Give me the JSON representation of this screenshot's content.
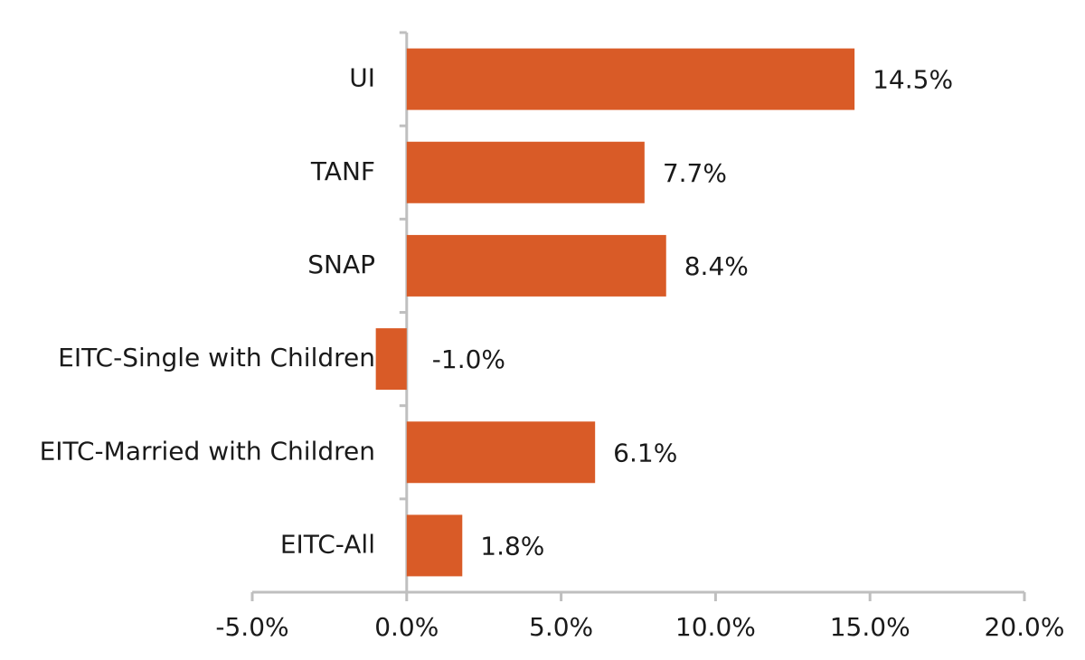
{
  "chart_data": {
    "type": "barh",
    "categories": [
      "UI",
      "TANF",
      "SNAP",
      "EITC-Single with Children",
      "EITC-Married with Children",
      "EITC-All"
    ],
    "values": [
      14.5,
      7.7,
      8.4,
      -1.0,
      6.1,
      1.8
    ],
    "value_labels": [
      "14.5%",
      "7.7%",
      "8.4%",
      "-1.0%",
      "6.1%",
      "1.8%"
    ],
    "color": "#d95b27",
    "xlim": [
      -5,
      20
    ],
    "xticks": [
      {
        "value": -5,
        "label": "-5.0%"
      },
      {
        "value": 0,
        "label": "0.0%"
      },
      {
        "value": 5,
        "label": "5.0%"
      },
      {
        "value": 10,
        "label": "10.0%"
      },
      {
        "value": 15,
        "label": "15.0%"
      },
      {
        "value": 20,
        "label": "20.0%"
      }
    ],
    "grid": false
  }
}
